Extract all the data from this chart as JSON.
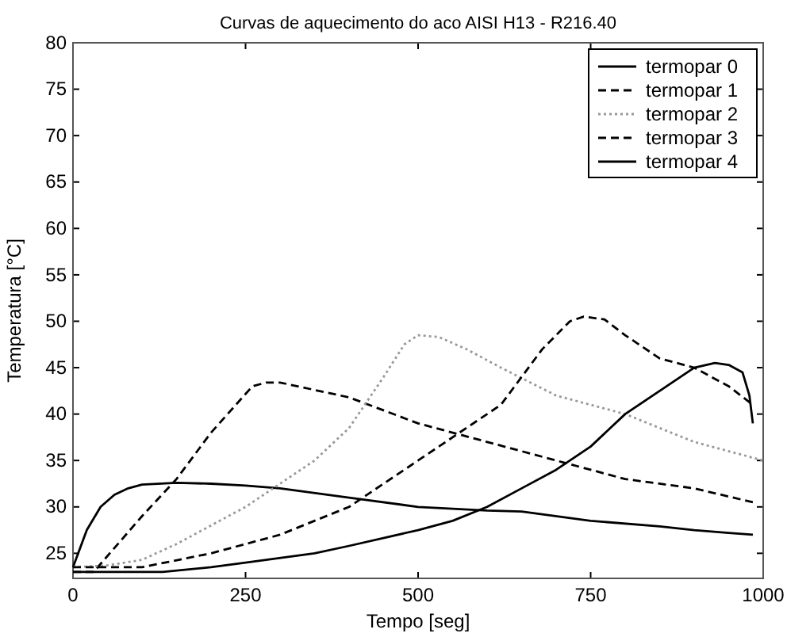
{
  "chart_data": {
    "type": "line",
    "title": "Curvas de aquecimento do aco AISI H13 - R216.40",
    "xlabel": "Tempo [seg]",
    "ylabel": "Temperatura [°C]",
    "xlim": [
      0,
      1000
    ],
    "ylim": [
      22.3,
      80
    ],
    "xticks": [
      0,
      250,
      500,
      750,
      1000
    ],
    "yticks": [
      25,
      30,
      35,
      40,
      45,
      50,
      55,
      60,
      65,
      70,
      75,
      80
    ],
    "grid": false,
    "legend": "top right",
    "series": [
      {
        "name": "termopar 0",
        "color": "#000000",
        "line_style": "solid",
        "x": [
          0,
          20,
          40,
          60,
          80,
          100,
          150,
          200,
          250,
          300,
          400,
          500,
          600,
          650,
          750,
          850,
          900,
          950,
          985
        ],
        "values": [
          23.5,
          27.5,
          30,
          31.3,
          32,
          32.4,
          32.6,
          32.5,
          32.3,
          32,
          31,
          30,
          29.6,
          29.5,
          28.5,
          27.9,
          27.5,
          27.2,
          27
        ]
      },
      {
        "name": "termopar 1",
        "color": "#000000",
        "line_style": "dashed",
        "x": [
          0,
          30,
          100,
          150,
          200,
          260,
          280,
          300,
          350,
          400,
          500,
          600,
          700,
          800,
          900,
          985
        ],
        "values": [
          23,
          23,
          29,
          33,
          38,
          43,
          43.4,
          43.4,
          42.6,
          41.8,
          39,
          37,
          35,
          33,
          32,
          30.5
        ]
      },
      {
        "name": "termopar 2",
        "color": "#999999",
        "line_style": "dotted",
        "x": [
          0,
          50,
          100,
          150,
          200,
          250,
          300,
          350,
          400,
          450,
          480,
          500,
          530,
          570,
          620,
          700,
          800,
          900,
          1000
        ],
        "values": [
          23.5,
          23.7,
          24.3,
          26,
          28,
          30,
          32.5,
          35,
          38.5,
          44,
          47.5,
          48.5,
          48.3,
          47,
          45,
          42,
          40,
          37,
          35
        ]
      },
      {
        "name": "termopar 3",
        "color": "#000000",
        "line_style": "dashed",
        "x": [
          0,
          100,
          200,
          300,
          400,
          500,
          560,
          620,
          680,
          720,
          740,
          770,
          800,
          850,
          900,
          950,
          985
        ],
        "values": [
          23.5,
          23.5,
          25,
          27,
          30,
          35,
          38,
          41,
          47,
          50,
          50.5,
          50.2,
          48.5,
          46,
          45,
          43,
          41
        ]
      },
      {
        "name": "termopar 4",
        "color": "#000000",
        "line_style": "solid",
        "x": [
          0,
          50,
          130,
          200,
          250,
          350,
          400,
          500,
          550,
          600,
          650,
          700,
          750,
          800,
          850,
          900,
          930,
          950,
          970,
          980,
          985
        ],
        "values": [
          23,
          23,
          23,
          23.5,
          24,
          25,
          25.8,
          27.5,
          28.5,
          30,
          32,
          34,
          36.5,
          40,
          42.5,
          45,
          45.5,
          45.3,
          44.5,
          42,
          39
        ]
      }
    ]
  }
}
